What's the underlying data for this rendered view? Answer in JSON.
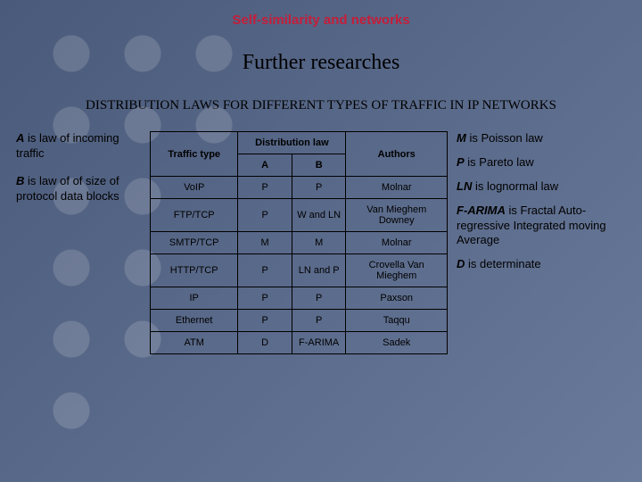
{
  "header": "Self-similarity and networks",
  "subtitle": "Further researches",
  "section_title": "DISTRIBUTION LAWS FOR DIFFERENT TYPES OF TRAFFIC IN IP NETWORKS",
  "left": {
    "a_prefix": "A",
    "a_text": " is law of incoming traffic",
    "b_prefix": "B",
    "b_text": " is law of of size of protocol data blocks"
  },
  "right": {
    "m_prefix": "M",
    "m_text": " is Poisson law",
    "p_prefix": "P",
    "p_text": " is Pareto law",
    "ln_prefix": "LN",
    "ln_text": " is lognormal law",
    "fa_prefix": "F-ARIMA",
    "fa_text": " is Fractal Auto-regressive Integrated moving Average",
    "d_prefix": "D",
    "d_text": " is determinate"
  },
  "table": {
    "head": {
      "traffic": "Traffic type",
      "dist": "Distribution law",
      "a": "A",
      "b": "B",
      "authors": "Authors"
    },
    "rows": [
      {
        "t": "VoIP",
        "a": "P",
        "b": "P",
        "auth": "Molnar"
      },
      {
        "t": "FTP/TCP",
        "a": "P",
        "b": "W and LN",
        "auth": "Van Mieghem Downey"
      },
      {
        "t": "SMTP/TCP",
        "a": "M",
        "b": "M",
        "auth": "Molnar"
      },
      {
        "t": "HTTP/TCP",
        "a": "P",
        "b": "LN and P",
        "auth": "Crovella Van Mieghem"
      },
      {
        "t": "IP",
        "a": "P",
        "b": "P",
        "auth": "Paxson"
      },
      {
        "t": "Ethernet",
        "a": "P",
        "b": "P",
        "auth": "Taqqu"
      },
      {
        "t": "ATM",
        "a": "D",
        "b": "F-ARIMA",
        "auth": "Sadek"
      }
    ]
  }
}
